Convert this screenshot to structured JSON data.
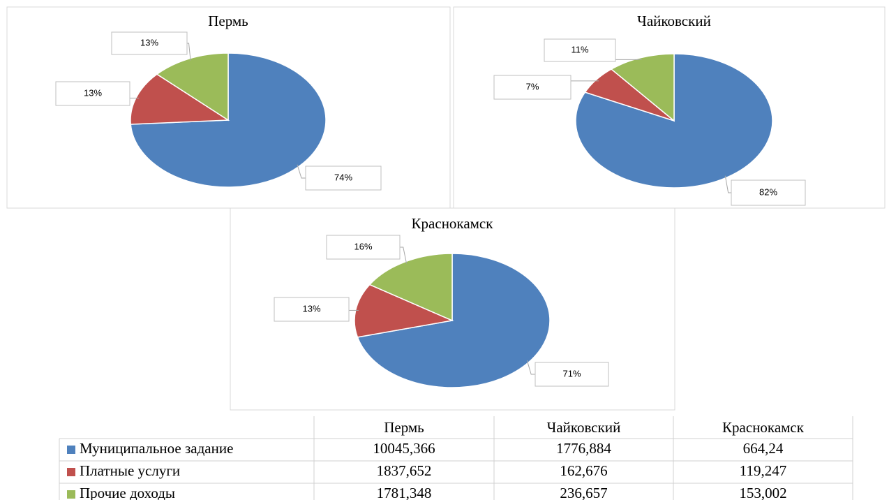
{
  "chart_data": [
    {
      "type": "pie",
      "title": "Пермь",
      "values": [
        74,
        13,
        13
      ],
      "value_labels": [
        "74%",
        "13%",
        "13%"
      ],
      "colors": [
        "#4f81bd",
        "#c0504d",
        "#9bbb59"
      ]
    },
    {
      "type": "pie",
      "title": "Чайковский",
      "values": [
        82,
        7,
        11
      ],
      "value_labels": [
        "82%",
        "7%",
        "11%"
      ],
      "colors": [
        "#4f81bd",
        "#c0504d",
        "#9bbb59"
      ]
    },
    {
      "type": "pie",
      "title": "Краснокамск",
      "values": [
        71,
        13,
        16
      ],
      "value_labels": [
        "71%",
        "13%",
        "16%"
      ],
      "colors": [
        "#4f81bd",
        "#c0504d",
        "#9bbb59"
      ]
    }
  ],
  "table": {
    "columns": [
      "Пермь",
      "Чайковский",
      "Краснокамск"
    ],
    "rows": [
      {
        "label": "Муниципальное задание",
        "color": "#4f81bd",
        "cells": [
          "10045,366",
          "1776,884",
          "664,24"
        ]
      },
      {
        "label": "Платные услуги",
        "color": "#c0504d",
        "cells": [
          "1837,652",
          "162,676",
          "119,247"
        ]
      },
      {
        "label": "Прочие доходы",
        "color": "#9bbb59",
        "cells": [
          "1781,348",
          "236,657",
          "153,002"
        ]
      }
    ]
  }
}
